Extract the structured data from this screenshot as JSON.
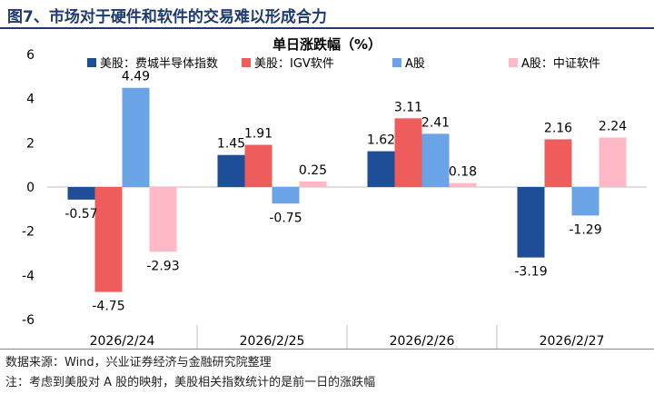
{
  "figure": {
    "title": "图7、市场对于硬件和软件的交易难以形成合力",
    "source": "数据来源：Wind，兴业证券经济与金融研究院整理",
    "note": "注：考虑到美股对 A 股的映射，美股相关指数统计的是前一日的涨跌幅"
  },
  "chart_data": {
    "type": "bar",
    "title": "单日涨跌幅（%）",
    "categories": [
      "2026/2/24",
      "2026/2/25",
      "2026/2/26",
      "2026/2/27"
    ],
    "series": [
      {
        "name": "美股：费城半导体指数",
        "color": "#1f4e99",
        "values": [
          -0.57,
          1.45,
          1.62,
          -3.19
        ]
      },
      {
        "name": "美股：IGV软件",
        "color": "#ee5c5c",
        "values": [
          -4.75,
          1.91,
          3.11,
          2.16
        ]
      },
      {
        "name": "A股",
        "color": "#6aa3e6",
        "values": [
          4.49,
          -0.75,
          2.41,
          -1.29
        ]
      },
      {
        "name": "A股：中证软件",
        "color": "#ffb8c6",
        "values": [
          -2.93,
          0.25,
          0.18,
          2.24
        ]
      }
    ],
    "ylim": [
      -6,
      6
    ],
    "yticks": [
      -6,
      -4,
      -2,
      0,
      2,
      4,
      6
    ],
    "legend_position": "top",
    "grid": false
  }
}
